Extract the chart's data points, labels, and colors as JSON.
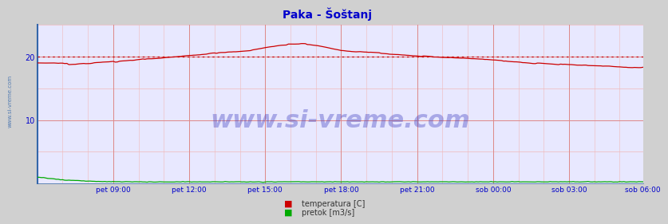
{
  "title": "Paka - Šoštanj",
  "title_color": "#0000cc",
  "title_fontsize": 10,
  "bg_color": "#d0d0d0",
  "plot_bg_color": "#e8e8ff",
  "outer_bg_color": "#c8c8c8",
  "grid_color_v_major": "#dd8888",
  "grid_color_v_minor": "#f0b8b8",
  "grid_color_h": "#dd8888",
  "grid_color_h_minor": "#f0b8b8",
  "xlabel_color": "#0000cc",
  "ylabel_color": "#0000cc",
  "watermark_text": "www.si-vreme.com",
  "watermark_color": "#3333bb",
  "watermark_alpha": 0.35,
  "watermark_fontsize": 22,
  "x_tick_labels": [
    "pet 09:00",
    "pet 12:00",
    "pet 15:00",
    "pet 18:00",
    "pet 21:00",
    "sob 00:00",
    "sob 03:00",
    "sob 06:00"
  ],
  "n_points": 288,
  "ylim": [
    0,
    25
  ],
  "ytick_positions": [
    10,
    20
  ],
  "avg_line_y": 20,
  "avg_line_color": "#cc0000",
  "temp_color": "#cc0000",
  "flow_color": "#00aa00",
  "legend_labels": [
    "temperatura [C]",
    "pretok [m3/s]"
  ],
  "legend_colors": [
    "#cc0000",
    "#00aa00"
  ],
  "sidebar_text": "www.si-vreme.com",
  "sidebar_color": "#3366aa",
  "border_color": "#6688aa"
}
